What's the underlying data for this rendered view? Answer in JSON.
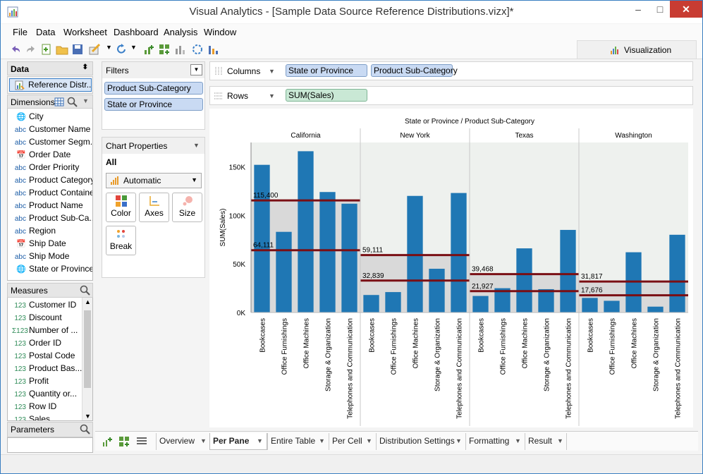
{
  "window": {
    "title": "Visual Analytics - [Sample Data Source Reference Distributions.vizx]*",
    "min_glyph": "–",
    "max_glyph": "□",
    "close_glyph": "✕"
  },
  "menu": [
    "File",
    "Data",
    "Worksheet",
    "Dashboard",
    "Analysis",
    "Window"
  ],
  "visualization_tab": "Visualization",
  "data_panel": {
    "header": "Data",
    "datasource": "Reference Distr...",
    "dimensions_label": "Dimensions",
    "dimensions": [
      {
        "icon": "globe",
        "label": "City"
      },
      {
        "icon": "abc",
        "label": "Customer Name"
      },
      {
        "icon": "abc",
        "label": "Customer Segm..."
      },
      {
        "icon": "date",
        "label": "Order Date"
      },
      {
        "icon": "abc",
        "label": "Order Priority"
      },
      {
        "icon": "abc",
        "label": "Product Category"
      },
      {
        "icon": "abc",
        "label": "Product Container"
      },
      {
        "icon": "abc",
        "label": "Product Name"
      },
      {
        "icon": "abc",
        "label": "Product Sub-Ca..."
      },
      {
        "icon": "abc",
        "label": "Region"
      },
      {
        "icon": "date",
        "label": "Ship Date"
      },
      {
        "icon": "abc",
        "label": "Ship Mode"
      },
      {
        "icon": "globe",
        "label": "State or Province"
      }
    ],
    "measures_label": "Measures",
    "measures": [
      {
        "icon": "123",
        "label": "Customer ID"
      },
      {
        "icon": "123",
        "label": "Discount"
      },
      {
        "icon": "Σ123",
        "label": "Number of ..."
      },
      {
        "icon": "123",
        "label": "Order ID"
      },
      {
        "icon": "123",
        "label": "Postal Code"
      },
      {
        "icon": "123",
        "label": "Product Bas..."
      },
      {
        "icon": "123",
        "label": "Profit"
      },
      {
        "icon": "123",
        "label": "Quantity or..."
      },
      {
        "icon": "123",
        "label": "Row ID"
      },
      {
        "icon": "123",
        "label": "Sales"
      }
    ],
    "parameters_label": "Parameters"
  },
  "filters": {
    "header": "Filters",
    "items": [
      "Product Sub-Category",
      "State or Province"
    ]
  },
  "chart_properties": {
    "header": "Chart Properties",
    "all_label": "All",
    "mark_type": "Automatic",
    "buttons": [
      "Color",
      "Axes",
      "Size",
      "Break"
    ]
  },
  "shelves": {
    "columns_label": "Columns",
    "columns": [
      "State or Province",
      "Product Sub-Category"
    ],
    "rows_label": "Rows",
    "rows": [
      "SUM(Sales)"
    ]
  },
  "sheet_tabs": [
    "Overview",
    "Per Pane",
    "Entire Table",
    "Per Cell",
    "Distribution Settings",
    "Formatting",
    "Result"
  ],
  "active_tab": "Per Pane",
  "chart_data": {
    "type": "bar",
    "title": "State or Province / Product Sub-Category",
    "ylabel": "SUM(Sales)",
    "ylim": [
      0,
      175000
    ],
    "yticks": [
      0,
      50000,
      100000,
      150000
    ],
    "ytick_labels": [
      "0K",
      "50K",
      "100K",
      "150K"
    ],
    "colors": {
      "bar": "#1f77b4",
      "refline": "#7a0f14",
      "band": "#d9d9d9"
    },
    "panes": [
      {
        "name": "California",
        "categories": [
          "Bookcases",
          "Office Furnishings",
          "Office Machines",
          "Storage & Organization",
          "Telephones and Communication"
        ],
        "values": [
          152000,
          83000,
          166000,
          124000,
          112000
        ],
        "reference_lines": [
          {
            "value": 115400,
            "label": "115,400"
          },
          {
            "value": 64111,
            "label": "64,111"
          }
        ]
      },
      {
        "name": "New York",
        "categories": [
          "Bookcases",
          "Office Furnishings",
          "Office Machines",
          "Storage & Organization",
          "Telephones and Communication"
        ],
        "values": [
          18000,
          21000,
          120000,
          45000,
          123000
        ],
        "reference_lines": [
          {
            "value": 59111,
            "label": "59,111"
          },
          {
            "value": 32839,
            "label": "32,839"
          }
        ]
      },
      {
        "name": "Texas",
        "categories": [
          "Bookcases",
          "Office Furnishings",
          "Office Machines",
          "Storage & Organization",
          "Telephones and Communication"
        ],
        "values": [
          17000,
          25000,
          66000,
          24000,
          85000
        ],
        "reference_lines": [
          {
            "value": 39468,
            "label": "39,468"
          },
          {
            "value": 21927,
            "label": "21,927"
          }
        ]
      },
      {
        "name": "Washington",
        "categories": [
          "Bookcases",
          "Office Furnishings",
          "Office Machines",
          "Storage & Organization",
          "Telephones and Communication"
        ],
        "values": [
          15000,
          12000,
          62000,
          6000,
          80000
        ],
        "reference_lines": [
          {
            "value": 31817,
            "label": "31,817"
          },
          {
            "value": 17676,
            "label": "17,676"
          }
        ]
      }
    ]
  }
}
